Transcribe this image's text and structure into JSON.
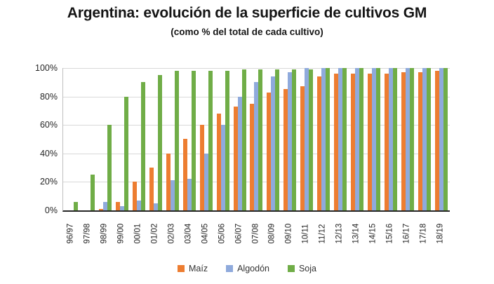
{
  "header": {
    "title": "Argentina: evolución de la superficie de cultivos GM",
    "subtitle": "(como % del total de cada cultivo)"
  },
  "chart_data": {
    "type": "bar",
    "title": "Argentina: evolución de la superficie de cultivos GM",
    "subtitle": "(como % del total de cada cultivo)",
    "categories": [
      "96/97",
      "97/98",
      "98/99",
      "99/00",
      "00/01",
      "01/02",
      "02/03",
      "03/04",
      "04/05",
      "05/06",
      "06/07",
      "07/08",
      "08/09",
      "09/10",
      "10/11",
      "11/12",
      "12/13",
      "13/14",
      "14/15",
      "15/16",
      "16/17",
      "17/18",
      "18/19"
    ],
    "series": [
      {
        "name": "Maíz",
        "color": "#ED7D31",
        "values": [
          0,
          0,
          1,
          6,
          20,
          30,
          40,
          50,
          60,
          68,
          73,
          75,
          83,
          85,
          87,
          94,
          96,
          96,
          96,
          96,
          97,
          97,
          98
        ]
      },
      {
        "name": "Algodón",
        "color": "#8FAADC",
        "values": [
          0,
          0,
          6,
          3,
          7,
          5,
          21,
          22,
          40,
          60,
          80,
          90,
          94,
          97,
          100,
          100,
          100,
          100,
          100,
          100,
          100,
          100,
          100
        ]
      },
      {
        "name": "Soja",
        "color": "#70AD47",
        "values": [
          6,
          25,
          60,
          80,
          90,
          95,
          98,
          98,
          98,
          98,
          99,
          99,
          99,
          99,
          99,
          100,
          100,
          100,
          100,
          100,
          100,
          100,
          100
        ]
      }
    ],
    "xlabel": "",
    "ylabel": "",
    "ylim": [
      0,
      100
    ],
    "yticks": [
      "0%",
      "20%",
      "40%",
      "60%",
      "80%",
      "100%"
    ],
    "grid": true,
    "legend_position": "bottom"
  },
  "style": {
    "gridline_color": "#d9d9d9",
    "axis_color": "#262626",
    "text_color": "#262626",
    "background": "#ffffff"
  }
}
